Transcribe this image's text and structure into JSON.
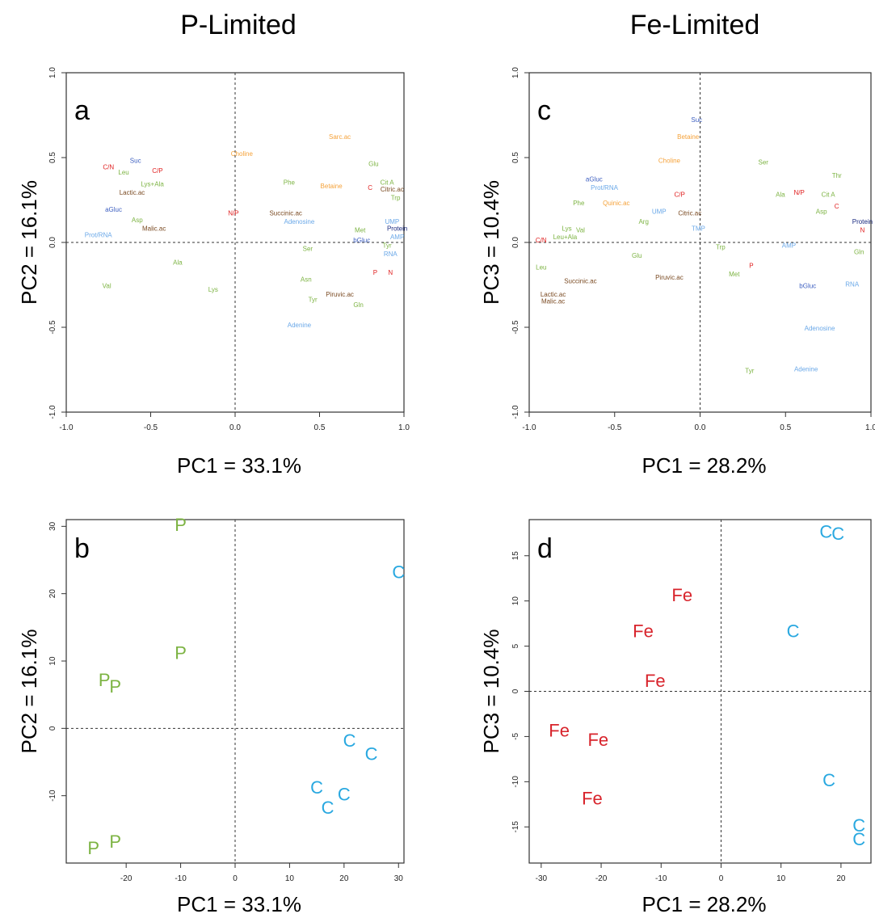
{
  "columns": {
    "left": "P-Limited",
    "right": "Fe-Limited"
  },
  "colors": {
    "green": "#7cb342",
    "orange": "#f5a23a",
    "red": "#e02020",
    "blue": "#3d5fc0",
    "lightblue": "#6aa8e8",
    "brown": "#7a4a22",
    "navy": "#1a2a80",
    "cyan": "#29a8e0",
    "fe_red": "#d8242c"
  },
  "chart_data": [
    {
      "type": "scatter",
      "panel": "a",
      "xlabel": "PC1 = 33.1%",
      "ylabel": "PC2 = 16.1%",
      "xlim": [
        -1.0,
        1.0
      ],
      "ylim": [
        -1.0,
        1.0
      ],
      "xticks": [
        "-1.0",
        "-0.5",
        "0.0",
        "0.5",
        "1.0"
      ],
      "yticks": [
        "-1.0",
        "-0.5",
        "0.0",
        "0.5",
        "1.0"
      ],
      "points": [
        {
          "label": "Sarc.ac",
          "x": 0.62,
          "y": 0.62,
          "color": "orange"
        },
        {
          "label": "Choline",
          "x": 0.04,
          "y": 0.52,
          "color": "orange"
        },
        {
          "label": "Glu",
          "x": 0.82,
          "y": 0.46,
          "color": "green"
        },
        {
          "label": "Phe",
          "x": 0.32,
          "y": 0.35,
          "color": "green"
        },
        {
          "label": "Betaine",
          "x": 0.57,
          "y": 0.33,
          "color": "orange"
        },
        {
          "label": "C",
          "x": 0.8,
          "y": 0.32,
          "color": "red"
        },
        {
          "label": "Cit A",
          "x": 0.9,
          "y": 0.35,
          "color": "green"
        },
        {
          "label": "Citric.ac",
          "x": 0.93,
          "y": 0.31,
          "color": "brown"
        },
        {
          "label": "Trp",
          "x": 0.95,
          "y": 0.26,
          "color": "green"
        },
        {
          "label": "C/N",
          "x": -0.75,
          "y": 0.44,
          "color": "red"
        },
        {
          "label": "Leu",
          "x": -0.66,
          "y": 0.41,
          "color": "green"
        },
        {
          "label": "Suc",
          "x": -0.59,
          "y": 0.48,
          "color": "blue"
        },
        {
          "label": "C/P",
          "x": -0.46,
          "y": 0.42,
          "color": "red"
        },
        {
          "label": "Lys+Ala",
          "x": -0.49,
          "y": 0.34,
          "color": "green"
        },
        {
          "label": "Lactic.ac",
          "x": -0.61,
          "y": 0.29,
          "color": "brown"
        },
        {
          "label": "aGluc",
          "x": -0.72,
          "y": 0.19,
          "color": "blue"
        },
        {
          "label": "Asp",
          "x": -0.58,
          "y": 0.13,
          "color": "green"
        },
        {
          "label": "Malic.ac",
          "x": -0.48,
          "y": 0.08,
          "color": "brown"
        },
        {
          "label": "Prot/RNA",
          "x": -0.81,
          "y": 0.04,
          "color": "lightblue"
        },
        {
          "label": "N/P",
          "x": -0.01,
          "y": 0.17,
          "color": "red"
        },
        {
          "label": "Succinic.ac",
          "x": 0.3,
          "y": 0.17,
          "color": "brown"
        },
        {
          "label": "Adenosine",
          "x": 0.38,
          "y": 0.12,
          "color": "lightblue"
        },
        {
          "label": "UMP",
          "x": 0.93,
          "y": 0.12,
          "color": "lightblue"
        },
        {
          "label": "Protein",
          "x": 0.96,
          "y": 0.08,
          "color": "navy"
        },
        {
          "label": "AMP",
          "x": 0.96,
          "y": 0.03,
          "color": "lightblue"
        },
        {
          "label": "bGluc",
          "x": 0.75,
          "y": 0.01,
          "color": "blue"
        },
        {
          "label": "Met",
          "x": 0.74,
          "y": 0.07,
          "color": "green"
        },
        {
          "label": "Ser",
          "x": 0.43,
          "y": -0.04,
          "color": "green"
        },
        {
          "label": "Tyr",
          "x": 0.9,
          "y": -0.02,
          "color": "green"
        },
        {
          "label": "RNA",
          "x": 0.92,
          "y": -0.07,
          "color": "lightblue"
        },
        {
          "label": "Ala",
          "x": -0.34,
          "y": -0.12,
          "color": "green"
        },
        {
          "label": "Val",
          "x": -0.76,
          "y": -0.26,
          "color": "green"
        },
        {
          "label": "Lys",
          "x": -0.13,
          "y": -0.28,
          "color": "green"
        },
        {
          "label": "Asn",
          "x": 0.42,
          "y": -0.22,
          "color": "green"
        },
        {
          "label": "P",
          "x": 0.83,
          "y": -0.18,
          "color": "red"
        },
        {
          "label": "N",
          "x": 0.92,
          "y": -0.18,
          "color": "red"
        },
        {
          "label": "Piruvic.ac",
          "x": 0.62,
          "y": -0.31,
          "color": "brown"
        },
        {
          "label": "Tyr",
          "x": 0.46,
          "y": -0.34,
          "color": "green"
        },
        {
          "label": "Gln",
          "x": 0.73,
          "y": -0.37,
          "color": "green"
        },
        {
          "label": "Adenine",
          "x": 0.38,
          "y": -0.49,
          "color": "lightblue"
        }
      ]
    },
    {
      "type": "scatter",
      "panel": "b",
      "xlabel": "PC1 = 33.1%",
      "ylabel": "PC2 = 16.1%",
      "xlim": [
        -31,
        31
      ],
      "ylim": [
        -20,
        31
      ],
      "xticks": [
        "-20",
        "-10",
        "0",
        "10",
        "20",
        "30"
      ],
      "yticks": [
        "-10",
        "0",
        "10",
        "20",
        "30"
      ],
      "points": [
        {
          "label": "P",
          "x": -10,
          "y": 30,
          "color": "green"
        },
        {
          "label": "P",
          "x": -10,
          "y": 11,
          "color": "green"
        },
        {
          "label": "P",
          "x": -24,
          "y": 7,
          "color": "green"
        },
        {
          "label": "P",
          "x": -22,
          "y": 6,
          "color": "green"
        },
        {
          "label": "P",
          "x": -26,
          "y": -18,
          "color": "green"
        },
        {
          "label": "P",
          "x": -22,
          "y": -17,
          "color": "green"
        },
        {
          "label": "C",
          "x": 30,
          "y": 23,
          "color": "cyan"
        },
        {
          "label": "C",
          "x": 21,
          "y": -2,
          "color": "cyan"
        },
        {
          "label": "C",
          "x": 25,
          "y": -4,
          "color": "cyan"
        },
        {
          "label": "C",
          "x": 15,
          "y": -9,
          "color": "cyan"
        },
        {
          "label": "C",
          "x": 20,
          "y": -10,
          "color": "cyan"
        },
        {
          "label": "C",
          "x": 17,
          "y": -12,
          "color": "cyan"
        }
      ]
    },
    {
      "type": "scatter",
      "panel": "c",
      "xlabel": "PC1 = 28.2%",
      "ylabel": "PC3 = 10.4%",
      "xlim": [
        -1.0,
        1.0
      ],
      "ylim": [
        -1.0,
        1.0
      ],
      "xticks": [
        "-1.0",
        "-0.5",
        "0.0",
        "0.5",
        "1.0"
      ],
      "yticks": [
        "-1.0",
        "-0.5",
        "0.0",
        "0.5",
        "1.0"
      ],
      "points": [
        {
          "label": "Suc",
          "x": -0.02,
          "y": 0.72,
          "color": "blue"
        },
        {
          "label": "Betaine",
          "x": -0.07,
          "y": 0.62,
          "color": "orange"
        },
        {
          "label": "Choline",
          "x": -0.18,
          "y": 0.48,
          "color": "orange"
        },
        {
          "label": "Ser",
          "x": 0.37,
          "y": 0.47,
          "color": "green"
        },
        {
          "label": "Thr",
          "x": 0.8,
          "y": 0.39,
          "color": "green"
        },
        {
          "label": "aGluc",
          "x": -0.62,
          "y": 0.37,
          "color": "blue"
        },
        {
          "label": "Prot/RNA",
          "x": -0.56,
          "y": 0.32,
          "color": "lightblue"
        },
        {
          "label": "Ala",
          "x": 0.47,
          "y": 0.28,
          "color": "green"
        },
        {
          "label": "N/P",
          "x": 0.58,
          "y": 0.29,
          "color": "red"
        },
        {
          "label": "Cit A",
          "x": 0.75,
          "y": 0.28,
          "color": "green"
        },
        {
          "label": "C/P",
          "x": -0.12,
          "y": 0.28,
          "color": "red"
        },
        {
          "label": "C",
          "x": 0.8,
          "y": 0.21,
          "color": "red"
        },
        {
          "label": "Phe",
          "x": -0.71,
          "y": 0.23,
          "color": "green"
        },
        {
          "label": "Quinic.ac",
          "x": -0.49,
          "y": 0.23,
          "color": "orange"
        },
        {
          "label": "UMP",
          "x": -0.24,
          "y": 0.18,
          "color": "lightblue"
        },
        {
          "label": "Citric.ac",
          "x": -0.06,
          "y": 0.17,
          "color": "brown"
        },
        {
          "label": "Asp",
          "x": 0.71,
          "y": 0.18,
          "color": "green"
        },
        {
          "label": "Arg",
          "x": -0.33,
          "y": 0.12,
          "color": "green"
        },
        {
          "label": "Protein",
          "x": 0.95,
          "y": 0.12,
          "color": "navy"
        },
        {
          "label": "N",
          "x": 0.95,
          "y": 0.07,
          "color": "red"
        },
        {
          "label": "TMP",
          "x": -0.01,
          "y": 0.08,
          "color": "lightblue"
        },
        {
          "label": "C/N",
          "x": -0.93,
          "y": 0.01,
          "color": "red"
        },
        {
          "label": "Lys",
          "x": -0.78,
          "y": 0.08,
          "color": "green"
        },
        {
          "label": "Val",
          "x": -0.7,
          "y": 0.07,
          "color": "green"
        },
        {
          "label": "Leu+Ala",
          "x": -0.79,
          "y": 0.03,
          "color": "green"
        },
        {
          "label": "AMP",
          "x": 0.52,
          "y": -0.02,
          "color": "lightblue"
        },
        {
          "label": "Trp",
          "x": 0.12,
          "y": -0.03,
          "color": "green"
        },
        {
          "label": "Gln",
          "x": 0.93,
          "y": -0.06,
          "color": "green"
        },
        {
          "label": "Glu",
          "x": -0.37,
          "y": -0.08,
          "color": "green"
        },
        {
          "label": "P",
          "x": 0.3,
          "y": -0.14,
          "color": "red"
        },
        {
          "label": "Leu",
          "x": -0.93,
          "y": -0.15,
          "color": "green"
        },
        {
          "label": "Met",
          "x": 0.2,
          "y": -0.19,
          "color": "green"
        },
        {
          "label": "Succinic.ac",
          "x": -0.7,
          "y": -0.23,
          "color": "brown"
        },
        {
          "label": "Piruvic.ac",
          "x": -0.18,
          "y": -0.21,
          "color": "brown"
        },
        {
          "label": "bGluc",
          "x": 0.63,
          "y": -0.26,
          "color": "blue"
        },
        {
          "label": "RNA",
          "x": 0.89,
          "y": -0.25,
          "color": "lightblue"
        },
        {
          "label": "Lactic.ac",
          "x": -0.86,
          "y": -0.31,
          "color": "brown"
        },
        {
          "label": "Malic.ac",
          "x": -0.86,
          "y": -0.35,
          "color": "brown"
        },
        {
          "label": "Adenosine",
          "x": 0.7,
          "y": -0.51,
          "color": "lightblue"
        },
        {
          "label": "Adenine",
          "x": 0.62,
          "y": -0.75,
          "color": "lightblue"
        },
        {
          "label": "Tyr",
          "x": 0.29,
          "y": -0.76,
          "color": "green"
        }
      ]
    },
    {
      "type": "scatter",
      "panel": "d",
      "xlabel": "PC1 = 28.2%",
      "ylabel": "PC3 = 10.4%",
      "xlim": [
        -32,
        25
      ],
      "ylim": [
        -19,
        19
      ],
      "xticks": [
        "-30",
        "-20",
        "-10",
        "0",
        "10",
        "20"
      ],
      "yticks": [
        "-15",
        "-10",
        "-5",
        "0",
        "5",
        "10",
        "15"
      ],
      "points": [
        {
          "label": "C",
          "x": 17.5,
          "y": 17.5,
          "color": "cyan"
        },
        {
          "label": "C",
          "x": 19.5,
          "y": 17.3,
          "color": "cyan"
        },
        {
          "label": "C",
          "x": 12,
          "y": 6.5,
          "color": "cyan"
        },
        {
          "label": "C",
          "x": 18,
          "y": -10,
          "color": "cyan"
        },
        {
          "label": "C",
          "x": 23,
          "y": -15,
          "color": "cyan"
        },
        {
          "label": "C",
          "x": 23,
          "y": -16.5,
          "color": "cyan"
        },
        {
          "label": "Fe",
          "x": -6.5,
          "y": 10.5,
          "color": "fe_red"
        },
        {
          "label": "Fe",
          "x": -13,
          "y": 6.5,
          "color": "fe_red"
        },
        {
          "label": "Fe",
          "x": -11,
          "y": 1,
          "color": "fe_red"
        },
        {
          "label": "Fe",
          "x": -27,
          "y": -4.5,
          "color": "fe_red"
        },
        {
          "label": "Fe",
          "x": -20.5,
          "y": -5.5,
          "color": "fe_red"
        },
        {
          "label": "Fe",
          "x": -21.5,
          "y": -12,
          "color": "fe_red"
        }
      ]
    }
  ]
}
